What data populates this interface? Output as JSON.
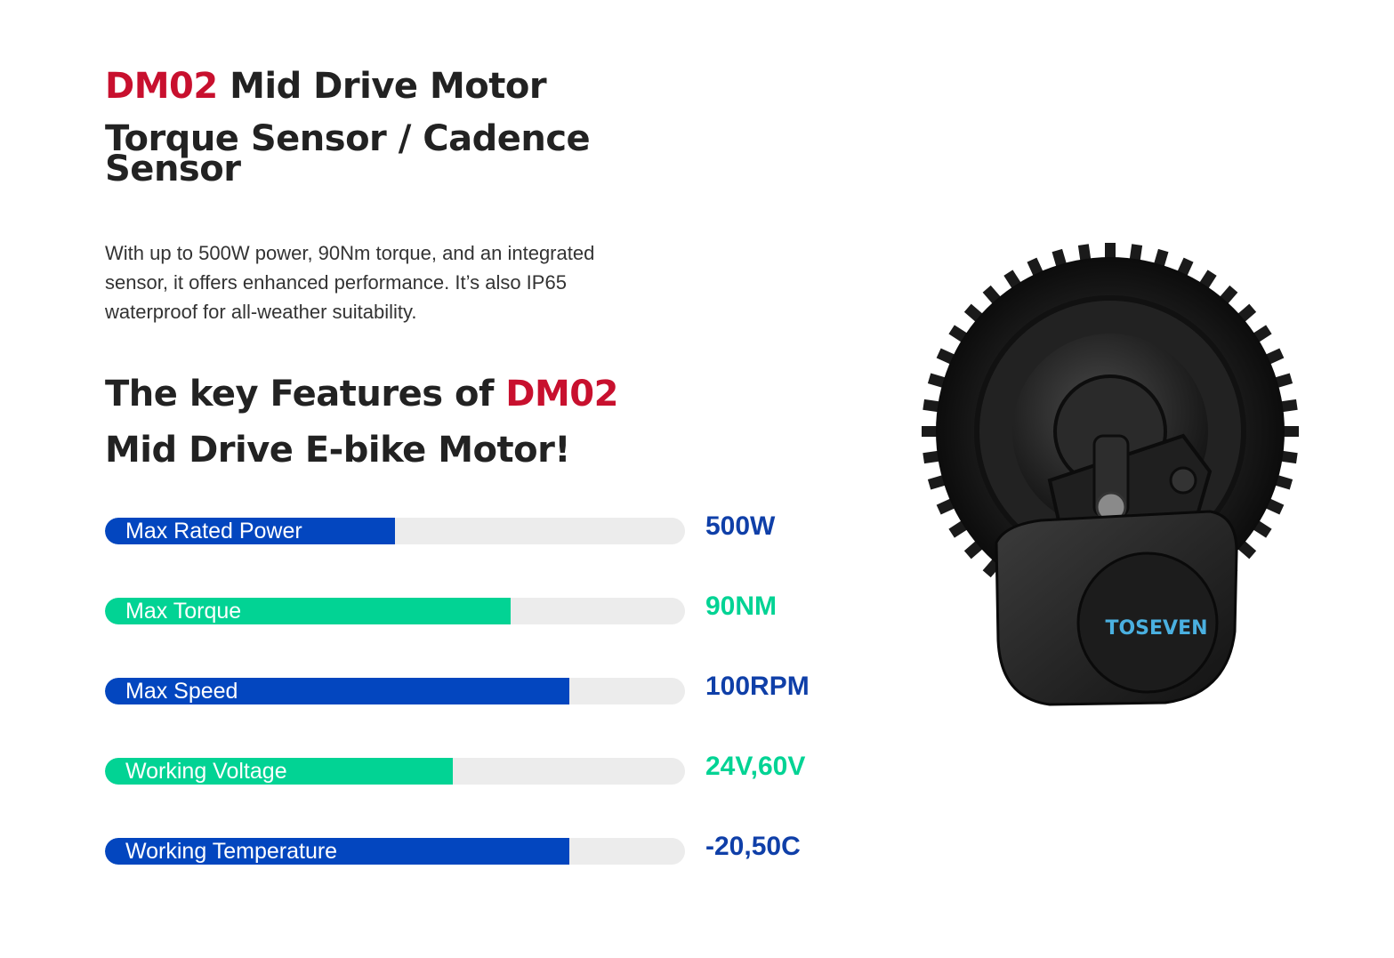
{
  "header": {
    "title_model": "DM02",
    "title_rest": " Mid Drive Motor",
    "subtitle": "Torque Sensor / Cadence Sensor"
  },
  "description": "With up to 500W power, 90Nm torque, and an integrated sensor, it offers enhanced performance. It’s also IP65 waterproof for all-weather suitability.",
  "features_heading": {
    "prefix": "The key Features of ",
    "model": "DM02",
    "suffix": " Mid Drive E-bike Motor!"
  },
  "specs": [
    {
      "label": "Max Rated Power",
      "value": "500W",
      "fill_percent": 50,
      "color": "#0346bf"
    },
    {
      "label": "Max Torque",
      "value": "90NM",
      "fill_percent": 70,
      "color": "#02d394"
    },
    {
      "label": "Max Speed",
      "value": "100RPM",
      "fill_percent": 80,
      "color": "#0346bf"
    },
    {
      "label": "Working Voltage",
      "value": "24V,60V",
      "fill_percent": 60,
      "color": "#02d394"
    },
    {
      "label": "Working Temperature",
      "value": "-20,50C",
      "fill_percent": 80,
      "color": "#0346bf"
    }
  ],
  "product_image": {
    "brand_text": "TOSEVEN"
  },
  "colors": {
    "accent_red": "#c8102e",
    "bar_blue": "#0346bf",
    "bar_green": "#02d394",
    "track": "#ececec"
  }
}
